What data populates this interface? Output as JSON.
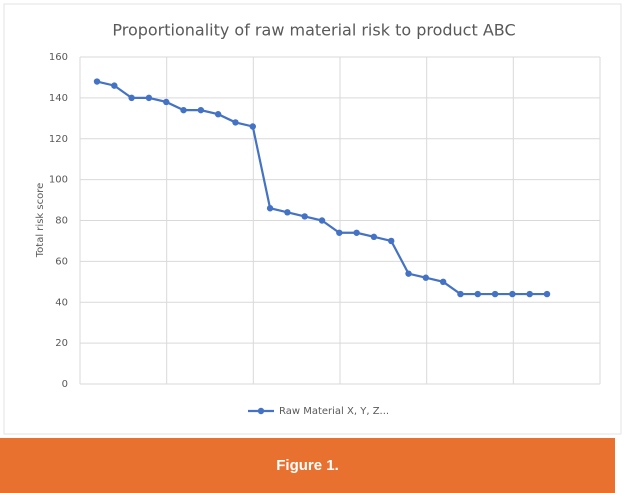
{
  "chart_data": {
    "type": "line",
    "title": "Proportionality of raw material risk to product ABC",
    "y_label": "Total risk score",
    "categories": [
      null,
      null,
      null,
      null,
      null,
      null,
      null,
      null,
      null,
      null,
      null,
      null,
      null,
      null,
      null,
      null,
      null,
      null,
      null,
      null,
      null,
      null,
      null,
      null,
      null,
      null,
      null
    ],
    "series": [
      {
        "name": "Raw Material X, Y, Z...",
        "color": "#4472c4",
        "values": [
          148,
          146,
          140,
          140,
          138,
          134,
          134,
          132,
          128,
          126,
          86,
          84,
          82,
          80,
          74,
          74,
          72,
          70,
          54,
          52,
          50,
          44,
          44,
          44,
          44,
          44,
          44
        ]
      }
    ],
    "ylim": [
      0,
      160
    ],
    "yticks": [
      0,
      20,
      40,
      60,
      80,
      100,
      120,
      140,
      160
    ],
    "grid": true,
    "legend": "bottom"
  },
  "caption": "Figure 1."
}
